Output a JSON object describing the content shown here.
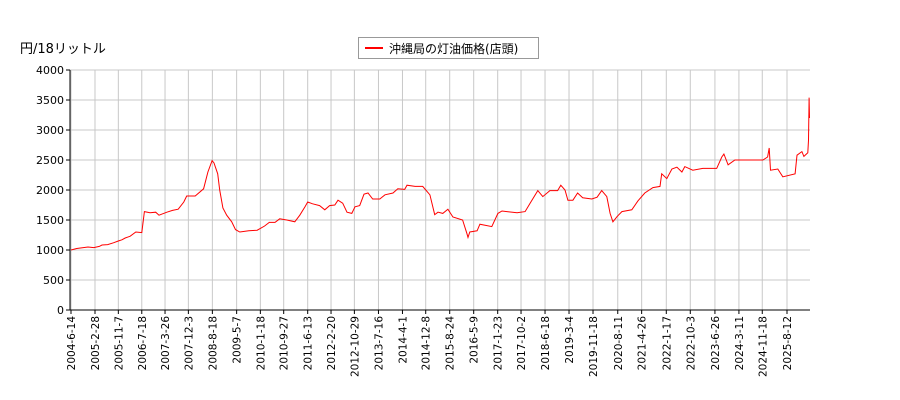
{
  "chart_data": {
    "type": "line",
    "title": "",
    "ylabel": "円/18リットル",
    "xlabel": "",
    "ylim": [
      0,
      4000
    ],
    "yticks": [
      0,
      500,
      1000,
      1500,
      2000,
      2500,
      3000,
      3500,
      4000
    ],
    "xticks": [
      "2004-6-14",
      "2005-2-28",
      "2005-11-7",
      "2006-7-18",
      "2007-3-26",
      "2007-12-3",
      "2008-8-18",
      "2009-5-7",
      "2010-1-18",
      "2010-9-27",
      "2011-6-13",
      "2012-2-20",
      "2012-10-29",
      "2013-7-16",
      "2014-4-1",
      "2014-12-8",
      "2015-8-24",
      "2016-5-9",
      "2017-1-23",
      "2017-10-2",
      "2018-6-18",
      "2019-3-4",
      "2019-11-18",
      "2020-8-11",
      "2021-4-26",
      "2022-1-17",
      "2022-10-3",
      "2023-6-26",
      "2024-3-11",
      "2024-11-18",
      "2025-8-12"
    ],
    "grid": true,
    "legend_position": "top-center",
    "series": [
      {
        "name": "沖縄局の灯油価格(店頭)",
        "color": "#ff0000",
        "points": [
          [
            "2004-06-14",
            1000
          ],
          [
            "2004-08-15",
            1025
          ],
          [
            "2004-12-15",
            1050
          ],
          [
            "2005-02-15",
            1040
          ],
          [
            "2005-04-15",
            1060
          ],
          [
            "2005-05-15",
            1083
          ],
          [
            "2005-07-15",
            1090
          ],
          [
            "2005-09-15",
            1120
          ],
          [
            "2005-11-07",
            1150
          ],
          [
            "2005-12-15",
            1170
          ],
          [
            "2006-01-20",
            1200
          ],
          [
            "2006-03-15",
            1230
          ],
          [
            "2006-05-15",
            1300
          ],
          [
            "2006-07-18",
            1290
          ],
          [
            "2006-08-15",
            1640
          ],
          [
            "2006-10-15",
            1620
          ],
          [
            "2006-12-15",
            1630
          ],
          [
            "2007-01-20",
            1580
          ],
          [
            "2007-04-15",
            1630
          ],
          [
            "2007-06-15",
            1660
          ],
          [
            "2007-08-15",
            1680
          ],
          [
            "2007-10-15",
            1800
          ],
          [
            "2007-11-15",
            1900
          ],
          [
            "2008-02-15",
            1900
          ],
          [
            "2008-05-15",
            2020
          ],
          [
            "2008-07-01",
            2300
          ],
          [
            "2008-08-15",
            2490
          ],
          [
            "2008-09-05",
            2450
          ],
          [
            "2008-10-15",
            2270
          ],
          [
            "2008-11-05",
            2000
          ],
          [
            "2008-12-10",
            1700
          ],
          [
            "2009-01-20",
            1580
          ],
          [
            "2009-03-15",
            1470
          ],
          [
            "2009-04-25",
            1340
          ],
          [
            "2009-06-10",
            1300
          ],
          [
            "2009-09-15",
            1320
          ],
          [
            "2009-12-15",
            1330
          ],
          [
            "2010-03-05",
            1400
          ],
          [
            "2010-04-25",
            1460
          ],
          [
            "2010-06-25",
            1460
          ],
          [
            "2010-08-15",
            1520
          ],
          [
            "2010-10-30",
            1500
          ],
          [
            "2011-01-25",
            1470
          ],
          [
            "2011-03-20",
            1580
          ],
          [
            "2011-05-15",
            1720
          ],
          [
            "2011-06-13",
            1800
          ],
          [
            "2011-08-05",
            1770
          ],
          [
            "2011-10-20",
            1740
          ],
          [
            "2011-12-15",
            1670
          ],
          [
            "2012-02-05",
            1740
          ],
          [
            "2012-04-01",
            1750
          ],
          [
            "2012-05-05",
            1830
          ],
          [
            "2012-06-25",
            1780
          ],
          [
            "2012-08-10",
            1630
          ],
          [
            "2012-10-01",
            1610
          ],
          [
            "2012-11-05",
            1720
          ],
          [
            "2012-12-25",
            1740
          ],
          [
            "2013-02-10",
            1930
          ],
          [
            "2013-03-25",
            1950
          ],
          [
            "2013-05-15",
            1850
          ],
          [
            "2013-07-30",
            1850
          ],
          [
            "2013-09-25",
            1920
          ],
          [
            "2013-12-20",
            1950
          ],
          [
            "2014-02-10",
            2020
          ],
          [
            "2014-04-25",
            2010
          ],
          [
            "2014-05-20",
            2080
          ],
          [
            "2014-08-15",
            2060
          ],
          [
            "2014-11-05",
            2060
          ],
          [
            "2014-12-20",
            1980
          ],
          [
            "2015-01-22",
            1920
          ],
          [
            "2015-03-15",
            1590
          ],
          [
            "2015-04-20",
            1630
          ],
          [
            "2015-06-10",
            1610
          ],
          [
            "2015-08-05",
            1680
          ],
          [
            "2015-09-28",
            1550
          ],
          [
            "2016-01-10",
            1500
          ],
          [
            "2016-02-25",
            1280
          ],
          [
            "2016-03-08",
            1210
          ],
          [
            "2016-03-28",
            1300
          ],
          [
            "2016-06-15",
            1320
          ],
          [
            "2016-07-15",
            1430
          ],
          [
            "2016-11-20",
            1390
          ],
          [
            "2017-01-25",
            1610
          ],
          [
            "2017-03-10",
            1650
          ],
          [
            "2017-08-20",
            1620
          ],
          [
            "2017-11-15",
            1640
          ],
          [
            "2018-01-08",
            1780
          ],
          [
            "2018-04-01",
            1990
          ],
          [
            "2018-05-25",
            1890
          ],
          [
            "2018-08-10",
            1990
          ],
          [
            "2018-11-01",
            1990
          ],
          [
            "2018-12-05",
            2080
          ],
          [
            "2019-01-20",
            2000
          ],
          [
            "2019-02-20",
            1830
          ],
          [
            "2019-04-15",
            1830
          ],
          [
            "2019-06-05",
            1950
          ],
          [
            "2019-07-30",
            1870
          ],
          [
            "2019-11-05",
            1850
          ],
          [
            "2020-01-01",
            1880
          ],
          [
            "2020-02-20",
            1990
          ],
          [
            "2020-04-15",
            1890
          ],
          [
            "2020-05-20",
            1610
          ],
          [
            "2020-06-20",
            1470
          ],
          [
            "2020-08-05",
            1560
          ],
          [
            "2020-09-25",
            1640
          ],
          [
            "2021-01-10",
            1670
          ],
          [
            "2021-03-18",
            1820
          ],
          [
            "2021-05-30",
            1950
          ],
          [
            "2021-08-25",
            2040
          ],
          [
            "2021-11-10",
            2060
          ],
          [
            "2021-11-28",
            2270
          ],
          [
            "2022-01-22",
            2190
          ],
          [
            "2022-03-18",
            2350
          ],
          [
            "2022-05-12",
            2380
          ],
          [
            "2022-07-05",
            2300
          ],
          [
            "2022-08-05",
            2390
          ],
          [
            "2022-10-30",
            2330
          ],
          [
            "2023-02-15",
            2360
          ],
          [
            "2023-07-15",
            2360
          ],
          [
            "2023-09-08",
            2550
          ],
          [
            "2023-10-01",
            2600
          ],
          [
            "2023-11-15",
            2420
          ],
          [
            "2024-01-28",
            2500
          ],
          [
            "2024-07-08",
            2500
          ],
          [
            "2024-11-25",
            2500
          ],
          [
            "2025-01-15",
            2550
          ],
          [
            "2025-02-01",
            2700
          ],
          [
            "2025-02-15",
            2330
          ],
          [
            "2025-05-05",
            2350
          ],
          [
            "2025-06-28",
            2220
          ],
          [
            "2025-11-07",
            2270
          ],
          [
            "2025-11-28",
            2580
          ],
          [
            "2026-01-20",
            2640
          ],
          [
            "2026-02-10",
            2560
          ],
          [
            "2026-03-25",
            2620
          ],
          [
            "2026-04-01",
            2830
          ],
          [
            "2026-04-08",
            3540
          ],
          [
            "2026-04-12",
            3200
          ]
        ]
      }
    ]
  }
}
